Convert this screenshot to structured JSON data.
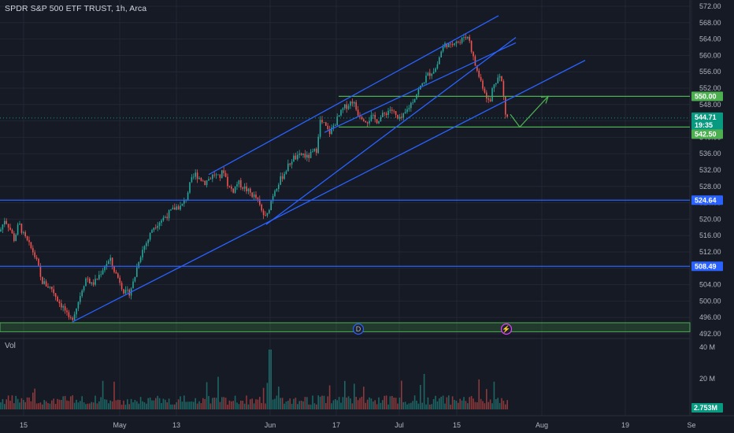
{
  "header": {
    "title": "SPDR S&P 500 ETF TRUST, 1h, Arca"
  },
  "volume_pane": {
    "label": "Vol"
  },
  "colors": {
    "background": "#161a25",
    "up": "#26a69a",
    "down": "#ef5350",
    "trendline": "#2962ff",
    "green_zone": "#4caf50",
    "grid": "#232733"
  },
  "chart_data": {
    "type": "candlestick",
    "timeframe": "1h",
    "ylim": [
      492,
      572
    ],
    "price_ticks": [
      "572.00",
      "568.00",
      "564.00",
      "560.00",
      "556.00",
      "552.00",
      "548.00",
      "544.00",
      "540.00",
      "536.00",
      "532.00",
      "528.00",
      "524.00",
      "520.00",
      "516.00",
      "512.00",
      "508.00",
      "504.00",
      "500.00",
      "496.00",
      "492.00"
    ],
    "time_ticks": [
      "15",
      "May",
      "13",
      "Jun",
      "17",
      "Jul",
      "15",
      "Aug",
      "19",
      "Se"
    ],
    "volume_ticks": [
      "40 M",
      "20 M",
      "0"
    ],
    "price_tags": [
      {
        "value": 550.0,
        "label": "550.00",
        "color": "#4caf50"
      },
      {
        "value": 544.71,
        "label": "544.71",
        "color": "#089981"
      },
      {
        "value": 543.4,
        "label": "19:35",
        "color": "#089981"
      },
      {
        "value": 542.5,
        "label": "542.50",
        "color": "#4caf50"
      },
      {
        "value": 524.64,
        "label": "524.64",
        "color": "#2962ff"
      },
      {
        "value": 508.49,
        "label": "508.49",
        "color": "#2962ff"
      }
    ],
    "volume_tag": {
      "value": "2.753M",
      "color": "#089981"
    },
    "current_price": 544.71,
    "horizontal_levels": [
      {
        "value": 550.0,
        "color": "#4caf50"
      },
      {
        "value": 542.5,
        "color": "#4caf50"
      },
      {
        "value": 524.64,
        "color": "#2962ff"
      },
      {
        "value": 508.49,
        "color": "#2962ff"
      }
    ],
    "support_zone": {
      "from": 492.5,
      "to": 494.7
    },
    "event_markers": [
      "D",
      "⚡"
    ],
    "price_path": [
      [
        0,
        517
      ],
      [
        6,
        520
      ],
      [
        12,
        518
      ],
      [
        18,
        515
      ],
      [
        24,
        519
      ],
      [
        30,
        516
      ],
      [
        36,
        514
      ],
      [
        42,
        512
      ],
      [
        48,
        509
      ],
      [
        52,
        505
      ],
      [
        58,
        504
      ],
      [
        66,
        503
      ],
      [
        74,
        500
      ],
      [
        82,
        498
      ],
      [
        88,
        495
      ],
      [
        92,
        496
      ],
      [
        98,
        499
      ],
      [
        104,
        503
      ],
      [
        110,
        506
      ],
      [
        116,
        504
      ],
      [
        122,
        505
      ],
      [
        128,
        507
      ],
      [
        134,
        509
      ],
      [
        140,
        510
      ],
      [
        146,
        507
      ],
      [
        152,
        505
      ],
      [
        158,
        502
      ],
      [
        164,
        502
      ],
      [
        170,
        505
      ],
      [
        176,
        510
      ],
      [
        182,
        513
      ],
      [
        188,
        515
      ],
      [
        194,
        518
      ],
      [
        200,
        519
      ],
      [
        206,
        520
      ],
      [
        212,
        521
      ],
      [
        218,
        522
      ],
      [
        224,
        523
      ],
      [
        230,
        523
      ],
      [
        236,
        525
      ],
      [
        242,
        529
      ],
      [
        248,
        531
      ],
      [
        254,
        530
      ],
      [
        260,
        529
      ],
      [
        266,
        530
      ],
      [
        272,
        531
      ],
      [
        278,
        530
      ],
      [
        284,
        532
      ],
      [
        290,
        528
      ],
      [
        296,
        527
      ],
      [
        302,
        529
      ],
      [
        308,
        528
      ],
      [
        314,
        527
      ],
      [
        320,
        526
      ],
      [
        326,
        525
      ],
      [
        332,
        522
      ],
      [
        338,
        520
      ],
      [
        342,
        523
      ],
      [
        348,
        527
      ],
      [
        354,
        529
      ],
      [
        360,
        531
      ],
      [
        366,
        533
      ],
      [
        372,
        535
      ],
      [
        378,
        535
      ],
      [
        384,
        536
      ],
      [
        390,
        535
      ],
      [
        396,
        536
      ],
      [
        402,
        537
      ],
      [
        406,
        544
      ],
      [
        412,
        543
      ],
      [
        418,
        541
      ],
      [
        424,
        543
      ],
      [
        430,
        545
      ],
      [
        436,
        547
      ],
      [
        442,
        548
      ],
      [
        448,
        549
      ],
      [
        454,
        546
      ],
      [
        460,
        545
      ],
      [
        466,
        544
      ],
      [
        472,
        545
      ],
      [
        478,
        544
      ],
      [
        484,
        545
      ],
      [
        490,
        546
      ],
      [
        496,
        547
      ],
      [
        500,
        546
      ],
      [
        506,
        544
      ],
      [
        512,
        545
      ],
      [
        518,
        547
      ],
      [
        524,
        549
      ],
      [
        530,
        551
      ],
      [
        536,
        553
      ],
      [
        542,
        555
      ],
      [
        548,
        556
      ],
      [
        554,
        557
      ],
      [
        560,
        561
      ],
      [
        566,
        563
      ],
      [
        572,
        562
      ],
      [
        578,
        564
      ],
      [
        584,
        563
      ],
      [
        590,
        565
      ],
      [
        596,
        564
      ],
      [
        600,
        560
      ],
      [
        606,
        556
      ],
      [
        612,
        553
      ],
      [
        618,
        550
      ],
      [
        622,
        548
      ],
      [
        626,
        553
      ],
      [
        630,
        554
      ],
      [
        634,
        555
      ],
      [
        638,
        553
      ],
      [
        641,
        546
      ],
      [
        645,
        544.71
      ]
    ],
    "trendlines": [
      {
        "x1": 92,
        "y1": 494.9,
        "x2": 743,
        "y2": 558.8
      },
      {
        "x1": 338,
        "y1": 518.7,
        "x2": 655,
        "y2": 564.4
      },
      {
        "x1": 265,
        "y1": 530.9,
        "x2": 633,
        "y2": 569.7
      },
      {
        "x1": 412,
        "y1": 541.2,
        "x2": 655,
        "y2": 563.1
      }
    ],
    "projection_path": [
      [
        648,
        545.6
      ],
      [
        660,
        542.5
      ],
      [
        696,
        550
      ]
    ]
  }
}
